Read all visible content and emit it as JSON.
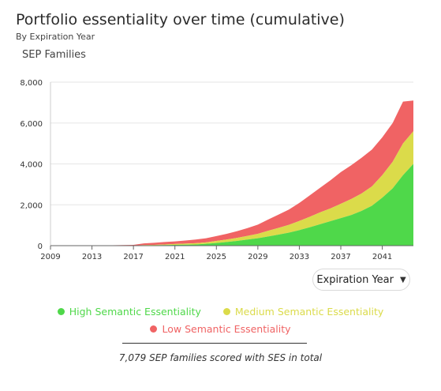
{
  "header": {
    "title": "Portfolio essentiality over time (cumulative)",
    "subtitle": "By Expiration Year"
  },
  "controls": {
    "period_select": "Expiration Year"
  },
  "legend": {
    "items": [
      {
        "label": "High Semantic Essentiality",
        "color": "#4fd84a"
      },
      {
        "label": "Medium Semantic Essentiality",
        "color": "#dbdb4a"
      },
      {
        "label": "Low Semantic Essentiality",
        "color": "#f06364"
      }
    ]
  },
  "footer": {
    "note": "7,079 SEP families scored with SES in total"
  },
  "chart_data": {
    "type": "area",
    "stacked": true,
    "title": "Portfolio essentiality over time (cumulative)",
    "subtitle": "By Expiration Year",
    "xlabel": "",
    "ylabel": "SEP Families",
    "ylim": [
      0,
      8000
    ],
    "yticks": [
      0,
      2000,
      4000,
      6000,
      8000
    ],
    "ytick_labels": [
      "0",
      "2,000",
      "4,000",
      "6,000",
      "8,000"
    ],
    "xlim": [
      2009,
      2044
    ],
    "xticks": [
      2009,
      2013,
      2017,
      2021,
      2025,
      2029,
      2033,
      2037,
      2041
    ],
    "grid": true,
    "legend_position": "bottom",
    "x": [
      2009,
      2010,
      2011,
      2012,
      2013,
      2014,
      2015,
      2016,
      2017,
      2018,
      2019,
      2020,
      2021,
      2022,
      2023,
      2024,
      2025,
      2026,
      2027,
      2028,
      2029,
      2030,
      2031,
      2032,
      2033,
      2034,
      2035,
      2036,
      2037,
      2038,
      2039,
      2040,
      2041,
      2042,
      2043,
      2044
    ],
    "series": [
      {
        "name": "High Semantic Essentiality",
        "color": "#4fd84a",
        "values": [
          0,
          0,
          5,
          5,
          5,
          5,
          5,
          10,
          10,
          20,
          20,
          30,
          40,
          50,
          60,
          90,
          130,
          180,
          230,
          300,
          360,
          450,
          540,
          640,
          760,
          900,
          1050,
          1200,
          1350,
          1500,
          1700,
          1950,
          2350,
          2800,
          3450,
          4000
        ]
      },
      {
        "name": "Medium Semantic Essentiality",
        "color": "#dbdb4a",
        "values": [
          0,
          0,
          0,
          0,
          0,
          0,
          0,
          0,
          0,
          10,
          20,
          30,
          40,
          50,
          60,
          70,
          100,
          120,
          150,
          180,
          220,
          280,
          330,
          380,
          450,
          510,
          580,
          620,
          700,
          780,
          850,
          950,
          1100,
          1300,
          1550,
          1600
        ]
      },
      {
        "name": "Low Semantic Essentiality",
        "color": "#f06364",
        "values": [
          0,
          10,
          15,
          15,
          15,
          15,
          15,
          20,
          30,
          80,
          100,
          120,
          130,
          150,
          180,
          200,
          240,
          280,
          330,
          380,
          450,
          550,
          650,
          750,
          880,
          1050,
          1200,
          1380,
          1550,
          1650,
          1750,
          1800,
          1850,
          1900,
          2050,
          1500
        ]
      }
    ]
  }
}
